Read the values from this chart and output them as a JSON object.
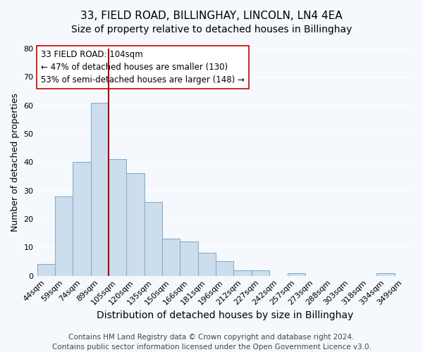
{
  "title": "33, FIELD ROAD, BILLINGHAY, LINCOLN, LN4 4EA",
  "subtitle": "Size of property relative to detached houses in Billinghay",
  "xlabel": "Distribution of detached houses by size in Billinghay",
  "ylabel": "Number of detached properties",
  "bar_color": "#ccdded",
  "bar_edge_color": "#7aaac8",
  "categories": [
    "44sqm",
    "59sqm",
    "74sqm",
    "89sqm",
    "105sqm",
    "120sqm",
    "135sqm",
    "150sqm",
    "166sqm",
    "181sqm",
    "196sqm",
    "212sqm",
    "227sqm",
    "242sqm",
    "257sqm",
    "273sqm",
    "288sqm",
    "303sqm",
    "318sqm",
    "334sqm",
    "349sqm"
  ],
  "values": [
    4,
    28,
    40,
    61,
    41,
    36,
    26,
    13,
    12,
    8,
    5,
    2,
    2,
    0,
    1,
    0,
    0,
    0,
    0,
    1,
    0
  ],
  "ylim": [
    0,
    80
  ],
  "yticks": [
    0,
    10,
    20,
    30,
    40,
    50,
    60,
    70,
    80
  ],
  "vline_bar_index": 3,
  "vline_color": "#aa0000",
  "annotation_title": "33 FIELD ROAD: 104sqm",
  "annotation_line1": "← 47% of detached houses are smaller (130)",
  "annotation_line2": "53% of semi-detached houses are larger (148) →",
  "annotation_box_color": "#ffffff",
  "annotation_box_edge": "#cc0000",
  "footer1": "Contains HM Land Registry data © Crown copyright and database right 2024.",
  "footer2": "Contains public sector information licensed under the Open Government Licence v3.0.",
  "background_color": "#f5f8fc",
  "plot_bg_color": "#f5f8fc",
  "grid_color": "#ffffff",
  "title_fontsize": 11,
  "subtitle_fontsize": 10,
  "xlabel_fontsize": 10,
  "ylabel_fontsize": 9,
  "tick_fontsize": 8,
  "annotation_fontsize": 8.5,
  "footer_fontsize": 7.5
}
